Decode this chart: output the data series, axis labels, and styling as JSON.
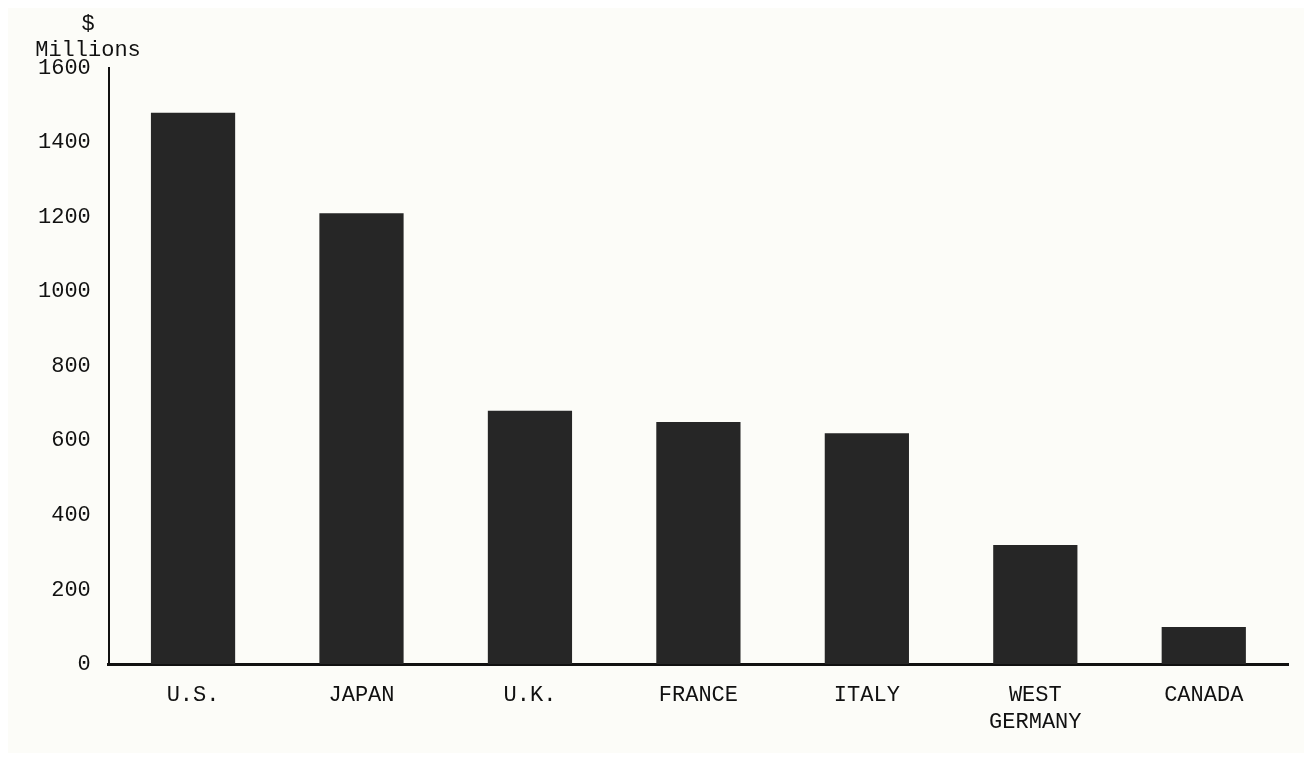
{
  "chart_data": {
    "type": "bar",
    "ylabel": "$\nMillions",
    "categories": [
      "U.S.",
      "JAPAN",
      "U.K.",
      "FRANCE",
      "ITALY",
      "WEST GERMANY",
      "CANADA"
    ],
    "values": [
      1480,
      1210,
      680,
      650,
      620,
      320,
      100
    ],
    "color": "#262626",
    "ylim": [
      0,
      1600
    ],
    "yticks": [
      0,
      200,
      400,
      600,
      800,
      1000,
      1200,
      1400,
      1600
    ],
    "grid": false
  }
}
